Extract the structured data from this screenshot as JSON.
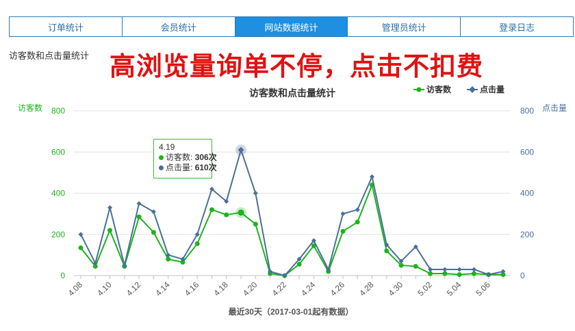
{
  "tabs": [
    {
      "label": "订单统计",
      "active": false
    },
    {
      "label": "会员统计",
      "active": false
    },
    {
      "label": "网站数据统计",
      "active": true
    },
    {
      "label": "管理员统计",
      "active": false
    },
    {
      "label": "登录日志",
      "active": false
    }
  ],
  "section_title": "访客数和点击量统计",
  "promo_text": "高浏览量询单不停，点击不扣费",
  "tooltip": {
    "date": "4.19",
    "visitors_label": "访客数",
    "visitors_value": "306次",
    "clicks_label": "点击量",
    "clicks_value": "610次"
  },
  "chart_data": {
    "type": "line",
    "title": "访客数和点击量统计",
    "xlabel": "最近30天（2017-03-01起有数据）",
    "ylabel_left": "访客数",
    "ylabel_right": "点击量",
    "ylim": [
      0,
      800
    ],
    "y_ticks": [
      0,
      200,
      400,
      600,
      800
    ],
    "grid": true,
    "legend_position": "top-right",
    "x": [
      "4.08",
      "4.09",
      "4.10",
      "4.11",
      "4.12",
      "4.13",
      "4.14",
      "4.15",
      "4.16",
      "4.17",
      "4.18",
      "4.19",
      "4.20",
      "4.21",
      "4.22",
      "4.23",
      "4.24",
      "4.25",
      "4.26",
      "4.27",
      "4.28",
      "4.29",
      "4.30",
      "5.01",
      "5.02",
      "5.03",
      "5.04",
      "5.05",
      "5.06",
      "5.07"
    ],
    "x_tick_labels": [
      "4.08",
      "4.10",
      "4.12",
      "4.14",
      "4.16",
      "4.18",
      "4.20",
      "4.22",
      "4.24",
      "4.26",
      "4.28",
      "4.30",
      "5.02",
      "5.04",
      "5.06"
    ],
    "series": [
      {
        "name": "访客数",
        "color": "#1bb51b",
        "values": [
          135,
          45,
          220,
          45,
          285,
          210,
          80,
          65,
          155,
          320,
          295,
          306,
          250,
          10,
          0,
          55,
          145,
          20,
          215,
          260,
          440,
          120,
          50,
          45,
          10,
          10,
          5,
          10,
          5,
          5
        ]
      },
      {
        "name": "点击量",
        "color": "#4a6f9a",
        "values": [
          200,
          60,
          330,
          50,
          350,
          310,
          100,
          80,
          200,
          420,
          360,
          610,
          400,
          20,
          0,
          80,
          170,
          30,
          300,
          320,
          480,
          150,
          70,
          140,
          30,
          30,
          30,
          30,
          5,
          20
        ]
      }
    ],
    "highlight_index": 11
  }
}
